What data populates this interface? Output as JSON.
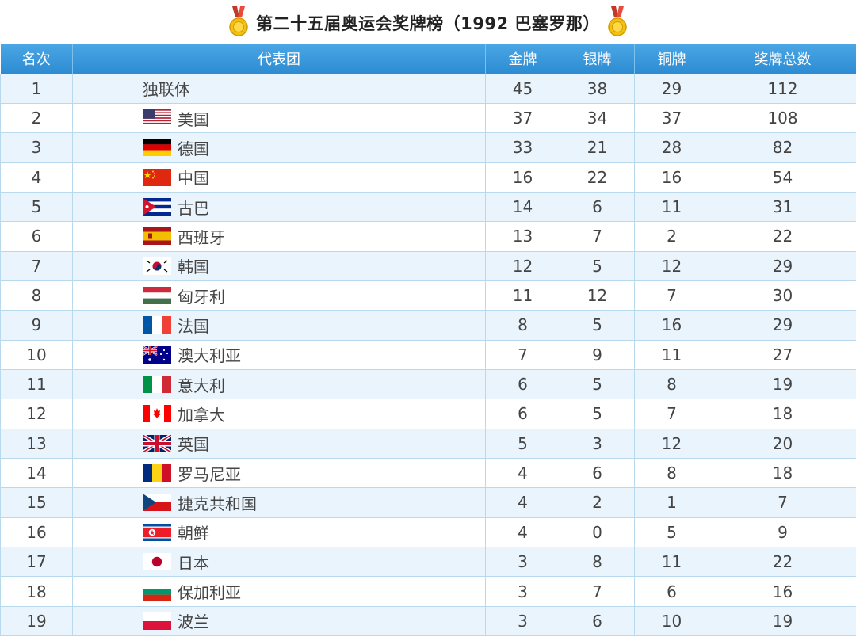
{
  "title": "第二十五届奥运会奖牌榜（1992 巴塞罗那）",
  "columns": {
    "rank": "名次",
    "team": "代表团",
    "gold": "金牌",
    "silver": "银牌",
    "bronze": "铜牌",
    "total": "奖牌总数"
  },
  "rows": [
    {
      "rank": "1",
      "team": "独联体",
      "flag": "none-icon",
      "gold": "45",
      "silver": "38",
      "bronze": "29",
      "total": "112"
    },
    {
      "rank": "2",
      "team": "美国",
      "flag": "usa-flag-icon",
      "gold": "37",
      "silver": "34",
      "bronze": "37",
      "total": "108"
    },
    {
      "rank": "3",
      "team": "德国",
      "flag": "germany-flag-icon",
      "gold": "33",
      "silver": "21",
      "bronze": "28",
      "total": "82"
    },
    {
      "rank": "4",
      "team": "中国",
      "flag": "china-flag-icon",
      "gold": "16",
      "silver": "22",
      "bronze": "16",
      "total": "54"
    },
    {
      "rank": "5",
      "team": "古巴",
      "flag": "cuba-flag-icon",
      "gold": "14",
      "silver": "6",
      "bronze": "11",
      "total": "31"
    },
    {
      "rank": "6",
      "team": "西班牙",
      "flag": "spain-flag-icon",
      "gold": "13",
      "silver": "7",
      "bronze": "2",
      "total": "22"
    },
    {
      "rank": "7",
      "team": "韩国",
      "flag": "korea-flag-icon",
      "gold": "12",
      "silver": "5",
      "bronze": "12",
      "total": "29"
    },
    {
      "rank": "8",
      "team": "匈牙利",
      "flag": "hungary-flag-icon",
      "gold": "11",
      "silver": "12",
      "bronze": "7",
      "total": "30"
    },
    {
      "rank": "9",
      "team": "法国",
      "flag": "france-flag-icon",
      "gold": "8",
      "silver": "5",
      "bronze": "16",
      "total": "29"
    },
    {
      "rank": "10",
      "team": "澳大利亚",
      "flag": "australia-flag-icon",
      "gold": "7",
      "silver": "9",
      "bronze": "11",
      "total": "27"
    },
    {
      "rank": "11",
      "team": "意大利",
      "flag": "italy-flag-icon",
      "gold": "6",
      "silver": "5",
      "bronze": "8",
      "total": "19"
    },
    {
      "rank": "12",
      "team": "加拿大",
      "flag": "canada-flag-icon",
      "gold": "6",
      "silver": "5",
      "bronze": "7",
      "total": "18"
    },
    {
      "rank": "13",
      "team": "英国",
      "flag": "uk-flag-icon",
      "gold": "5",
      "silver": "3",
      "bronze": "12",
      "total": "20"
    },
    {
      "rank": "14",
      "team": "罗马尼亚",
      "flag": "romania-flag-icon",
      "gold": "4",
      "silver": "6",
      "bronze": "8",
      "total": "18"
    },
    {
      "rank": "15",
      "team": "捷克共和国",
      "flag": "czech-flag-icon",
      "gold": "4",
      "silver": "2",
      "bronze": "1",
      "total": "7"
    },
    {
      "rank": "16",
      "team": "朝鲜",
      "flag": "north-korea-flag-icon",
      "gold": "4",
      "silver": "0",
      "bronze": "5",
      "total": "9"
    },
    {
      "rank": "17",
      "team": "日本",
      "flag": "japan-flag-icon",
      "gold": "3",
      "silver": "8",
      "bronze": "11",
      "total": "22"
    },
    {
      "rank": "18",
      "team": "保加利亚",
      "flag": "bulgaria-flag-icon",
      "gold": "3",
      "silver": "7",
      "bronze": "6",
      "total": "16"
    },
    {
      "rank": "19",
      "team": "波兰",
      "flag": "poland-flag-icon",
      "gold": "3",
      "silver": "6",
      "bronze": "10",
      "total": "19"
    }
  ],
  "colors": {
    "header_bg": "#3399dd",
    "row_alt_bg": "#eaf4fc",
    "border": "#b9d9ef",
    "medal_gold": "#f2c10f",
    "medal_ribbon": "#c0392b"
  }
}
